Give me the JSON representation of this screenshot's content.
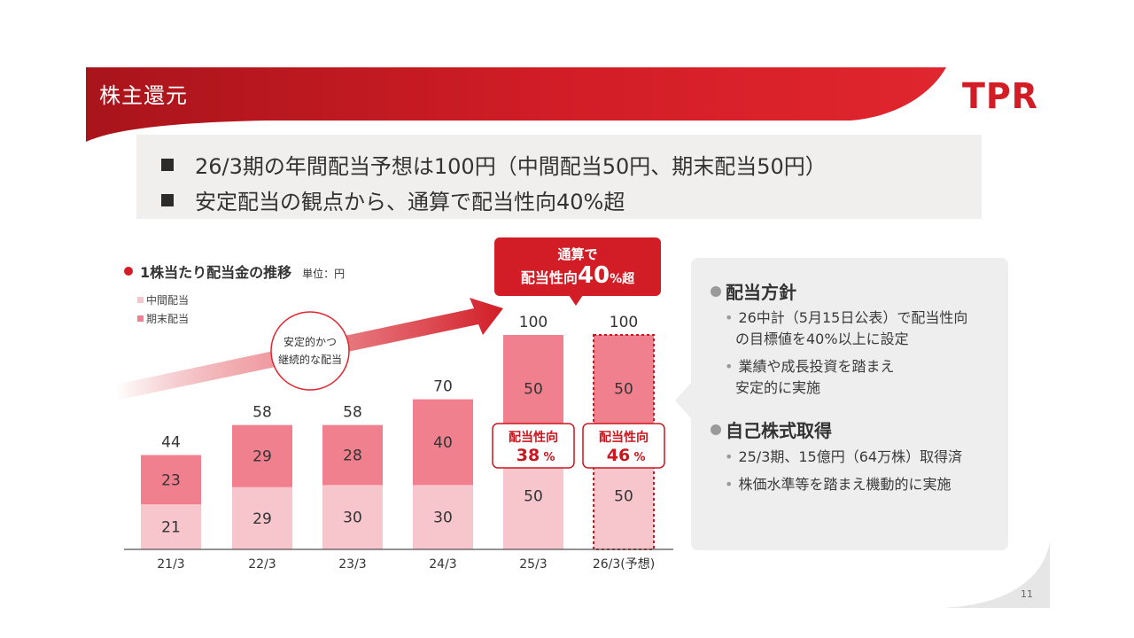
{
  "header": {
    "title": "株主還元",
    "logo": "TPR"
  },
  "summary": {
    "lines": [
      "26/3期の年間配当予想は100円（中間配当50円、期末配当50円）",
      "安定配当の観点から、通算で配当性向40%超"
    ]
  },
  "chart_data": {
    "type": "bar",
    "title": "1株当たり配当金の推移",
    "unit": "単位：円",
    "categories": [
      "21/3",
      "22/3",
      "23/3",
      "24/3",
      "25/3",
      "26/3(予想)"
    ],
    "series": [
      {
        "name": "中間配当",
        "values": [
          21,
          29,
          30,
          30,
          50,
          50
        ],
        "color": "#f7c5cc"
      },
      {
        "name": "期末配当",
        "values": [
          23,
          29,
          28,
          40,
          50,
          50
        ],
        "color": "#f0808d"
      }
    ],
    "totals": [
      "44",
      "58",
      "58",
      "70",
      "100",
      "100"
    ],
    "ylim": [
      0,
      100
    ],
    "forecast_index": 5,
    "payout_labels": [
      {
        "category": "25/3",
        "label": "配当性向",
        "value": "38",
        "unit": "%"
      },
      {
        "category": "26/3(予想)",
        "label": "配当性向",
        "value": "46",
        "unit": "%"
      }
    ],
    "trend_label": [
      "安定的かつ",
      "継続的な配当"
    ],
    "callout": {
      "line1": "通算で",
      "line2_prefix": "配当性向",
      "line2_value": "40",
      "line2_suffix": "%超"
    }
  },
  "side_panel": {
    "sections": [
      {
        "heading": "配当方針",
        "items": [
          [
            "26中計（5月15日公表）で配当性向",
            "の目標値を40%以上に設定"
          ],
          [
            "業績や成長投資を踏まえ",
            "安定的に実施"
          ]
        ]
      },
      {
        "heading": "自己株式取得",
        "items": [
          [
            "25/3期、15億円（64万株）取得済"
          ],
          [
            "株価水準等を踏まえ機動的に実施"
          ]
        ]
      }
    ]
  },
  "page_number": "11",
  "colors": {
    "brand_red": "#d21d26",
    "interim_pink": "#f7c5cc",
    "final_pink": "#f0808d",
    "panel_gray": "#eeeeee"
  }
}
